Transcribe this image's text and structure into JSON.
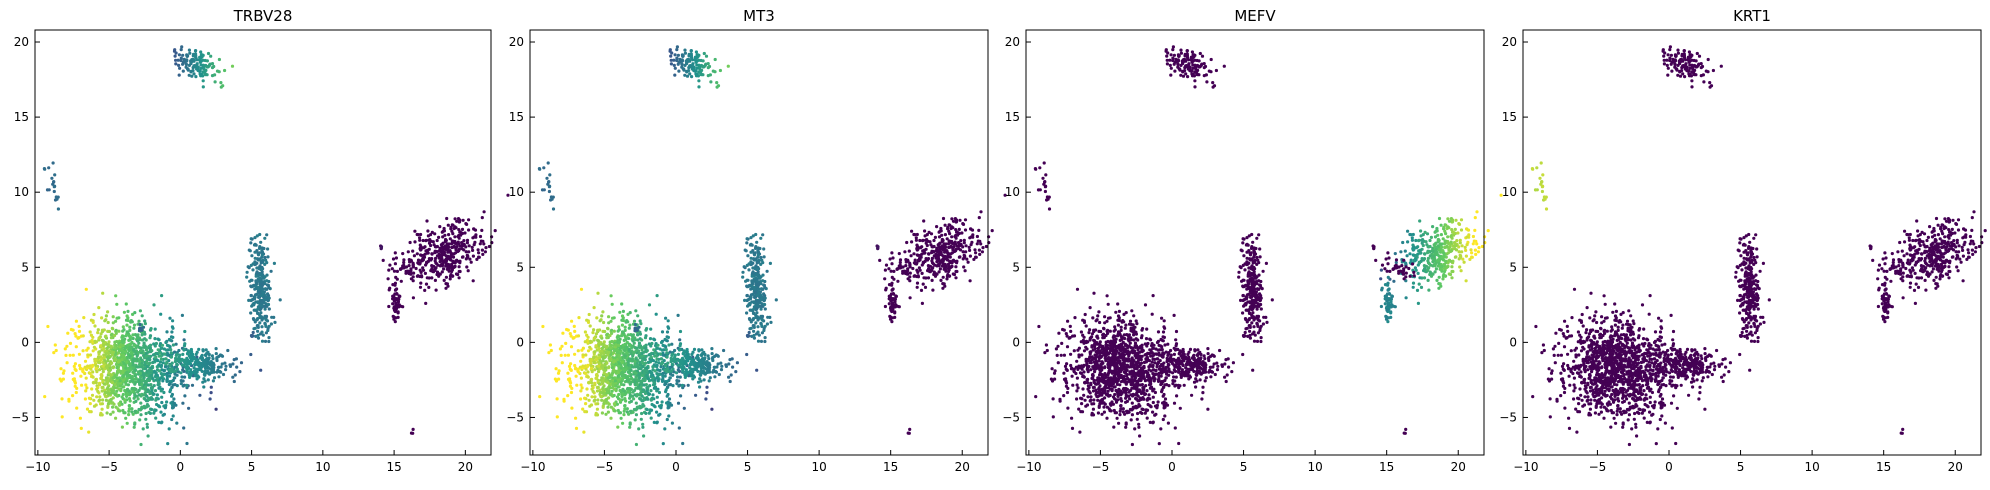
{
  "chart_data": [
    {
      "type": "scatter",
      "title": "TRBV28",
      "xlabel": "",
      "ylabel": "",
      "xlim": [
        -10.2,
        21.8
      ],
      "ylim": [
        -7.5,
        20.8
      ],
      "xticks": [
        -10,
        -5,
        0,
        5,
        10,
        15,
        20
      ],
      "yticks": [
        -5,
        0,
        5,
        10,
        15,
        20
      ],
      "tick_labels_x": [
        "−10",
        "−5",
        "0",
        "5",
        "10",
        "15",
        "20"
      ],
      "tick_labels_y": [
        "−5",
        "0",
        "5",
        "10",
        "15",
        "20"
      ],
      "grid": false,
      "colormap": "viridis",
      "cluster_values": [
        0.45,
        0.35,
        0.85,
        0.55,
        0.4,
        0.35,
        0.0,
        0.0,
        0.0,
        0.3,
        0.0,
        0.05
      ]
    },
    {
      "type": "scatter",
      "title": "MT3",
      "xlabel": "",
      "ylabel": "",
      "xlim": [
        -10.2,
        21.8
      ],
      "ylim": [
        -7.5,
        20.8
      ],
      "xticks": [
        -10,
        -5,
        0,
        5,
        10,
        15,
        20
      ],
      "yticks": [
        -5,
        0,
        5,
        10,
        15,
        20
      ],
      "tick_labels_x": [
        "−10",
        "−5",
        "0",
        "5",
        "10",
        "15",
        "20"
      ],
      "tick_labels_y": [
        "−5",
        "0",
        "5",
        "10",
        "15",
        "20"
      ],
      "grid": false,
      "colormap": "viridis",
      "cluster_values": [
        0.45,
        0.35,
        0.85,
        0.55,
        0.4,
        0.35,
        0.0,
        0.0,
        0.0,
        0.3,
        0.0,
        0.05
      ]
    },
    {
      "type": "scatter",
      "title": "MEFV",
      "xlabel": "",
      "ylabel": "",
      "xlim": [
        -10.2,
        21.8
      ],
      "ylim": [
        -7.5,
        20.8
      ],
      "xticks": [
        -10,
        -5,
        0,
        5,
        10,
        15,
        20
      ],
      "yticks": [
        -5,
        0,
        5,
        10,
        15,
        20
      ],
      "tick_labels_x": [
        "−10",
        "−5",
        "0",
        "5",
        "10",
        "15",
        "20"
      ],
      "tick_labels_y": [
        "−5",
        "0",
        "5",
        "10",
        "15",
        "20"
      ],
      "grid": false,
      "colormap": "viridis",
      "cluster_values": [
        0.0,
        0.0,
        0.0,
        0.0,
        0.0,
        0.0,
        0.7,
        0.45,
        0.0,
        0.0,
        0.0,
        0.0
      ]
    },
    {
      "type": "scatter",
      "title": "KRT1",
      "xlabel": "",
      "ylabel": "",
      "xlim": [
        -10.2,
        21.8
      ],
      "ylim": [
        -7.5,
        20.8
      ],
      "xticks": [
        -10,
        -5,
        0,
        5,
        10,
        15,
        20
      ],
      "yticks": [
        -5,
        0,
        5,
        10,
        15,
        20
      ],
      "tick_labels_x": [
        "−10",
        "−5",
        "0",
        "5",
        "10",
        "15",
        "20"
      ],
      "tick_labels_y": [
        "−5",
        "0",
        "5",
        "10",
        "15",
        "20"
      ],
      "grid": false,
      "colormap": "viridis",
      "cluster_values": [
        0.0,
        0.9,
        0.0,
        0.0,
        0.0,
        0.0,
        0.0,
        0.0,
        0.0,
        0.0,
        0.0,
        0.0
      ]
    }
  ],
  "clusters": [
    {
      "id": "top",
      "n": 140,
      "cx": 1.0,
      "cy": 18.6,
      "sx": 0.9,
      "sy": 0.45,
      "rot": -0.5
    },
    {
      "id": "left-small",
      "n": 20,
      "cx": -8.9,
      "cy": 10.4,
      "sx": 0.25,
      "sy": 0.9,
      "rot": 0.2
    },
    {
      "id": "big-left",
      "n": 1300,
      "cx": -3.6,
      "cy": -1.8,
      "sx": 1.9,
      "sy": 1.6,
      "rot": -0.25
    },
    {
      "id": "mid-left",
      "n": 260,
      "cx": 1.3,
      "cy": -1.4,
      "sx": 1.3,
      "sy": 0.55,
      "rot": -0.15
    },
    {
      "id": "mid-vert",
      "n": 280,
      "cx": 5.6,
      "cy": 3.6,
      "sx": 0.35,
      "sy": 1.6,
      "rot": 0.05
    },
    {
      "id": "small-dot",
      "n": 8,
      "cx": -2.8,
      "cy": 0.9,
      "sx": 0.15,
      "sy": 0.15,
      "rot": 0.0
    },
    {
      "id": "right-big",
      "n": 380,
      "cx": 18.7,
      "cy": 6.0,
      "sx": 1.5,
      "sy": 0.85,
      "rot": 0.5
    },
    {
      "id": "right-small",
      "n": 60,
      "cx": 15.1,
      "cy": 2.6,
      "sx": 0.2,
      "sy": 0.65,
      "rot": 0.0
    },
    {
      "id": "right-thread",
      "n": 40,
      "cx": 15.8,
      "cy": 5.0,
      "sx": 0.7,
      "sy": 0.3,
      "rot": -0.4
    },
    {
      "id": "mid-dot",
      "n": 6,
      "cx": 5.1,
      "cy": 0.5,
      "sx": 0.1,
      "sy": 0.1,
      "rot": 0.0
    },
    {
      "id": "far-dot",
      "n": 3,
      "cx": 16.3,
      "cy": -6.0,
      "sx": 0.08,
      "sy": 0.08,
      "rot": 0.0
    },
    {
      "id": "stub",
      "n": 4,
      "cx": 14.1,
      "cy": 6.3,
      "sx": 0.08,
      "sy": 0.08,
      "rot": 0.0
    }
  ]
}
